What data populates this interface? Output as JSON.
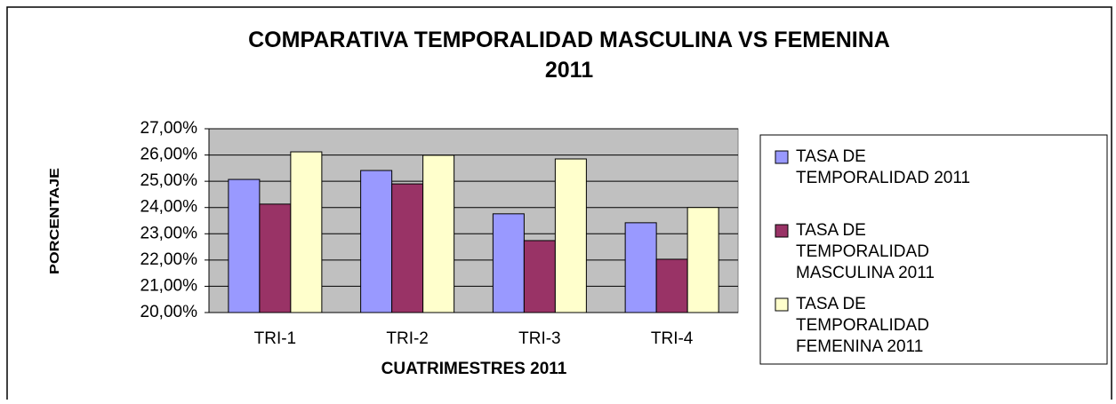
{
  "chart_data": {
    "type": "bar",
    "title": "COMPARATIVA TEMPORALIDAD MASCULINA VS FEMENINA 2011",
    "x_label": "CUATRIMESTRES 2011",
    "y_label": "PORCENTAJE",
    "categories": [
      "TRI-1",
      "TRI-2",
      "TRI-3",
      "TRI-4"
    ],
    "series": [
      {
        "name": "TASA DE TEMPORALIDAD 2011",
        "color": "#9999ff",
        "values": [
          25.07,
          25.41,
          23.76,
          23.42
        ]
      },
      {
        "name": "TASA DE TEMPORALIDAD MASCULINA 2011",
        "color": "#993366",
        "values": [
          24.13,
          24.9,
          22.74,
          22.03
        ]
      },
      {
        "name": "TASA DE TEMPORALIDAD FEMENINA 2011",
        "color": "#ffffcc",
        "values": [
          26.12,
          25.99,
          25.85,
          24.0
        ]
      }
    ],
    "ylim": [
      20,
      27
    ],
    "yticks": [
      {
        "value": 20,
        "label": "20,00%"
      },
      {
        "value": 21,
        "label": "21,00%"
      },
      {
        "value": 22,
        "label": "22,00%"
      },
      {
        "value": 23,
        "label": "23,00%"
      },
      {
        "value": 24,
        "label": "24,00%"
      },
      {
        "value": 25,
        "label": "25,00%"
      },
      {
        "value": 26,
        "label": "26,00%"
      },
      {
        "value": 27,
        "label": "27,00%"
      }
    ],
    "grid": true,
    "legend": "right"
  }
}
